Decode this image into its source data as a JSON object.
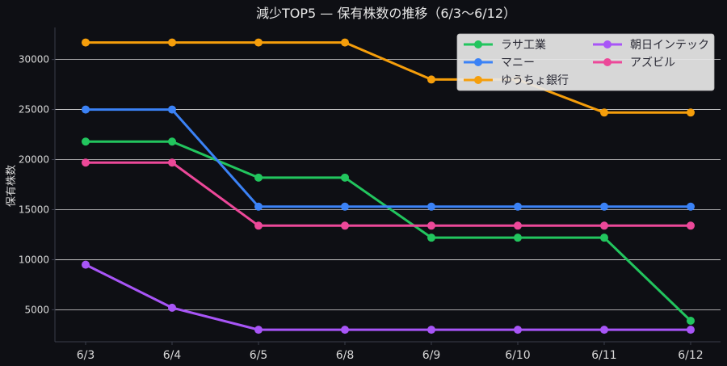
{
  "chart_data": {
    "type": "line",
    "title": "減少TOP5 — 保有株数の推移（6/3〜6/12）",
    "xlabel": "",
    "ylabel": "保有株数",
    "categories": [
      "6/3",
      "6/4",
      "6/5",
      "6/8",
      "6/9",
      "6/10",
      "6/11",
      "6/12"
    ],
    "ylim": [
      1800,
      33200
    ],
    "yticks": [
      5000,
      10000,
      15000,
      20000,
      25000,
      30000
    ],
    "grid": "horizontal",
    "legend": "top-right",
    "series": [
      {
        "name": "ラサ工業",
        "color": "#22c55e",
        "values": [
          21800,
          21800,
          18200,
          18200,
          12200,
          12200,
          12200,
          3900
        ]
      },
      {
        "name": "マニー",
        "color": "#3b82f6",
        "values": [
          25000,
          25000,
          15300,
          15300,
          15300,
          15300,
          15300,
          15300
        ]
      },
      {
        "name": "ゆうちょ銀行",
        "color": "#f59e0b",
        "values": [
          31700,
          31700,
          31700,
          31700,
          28000,
          28000,
          24700,
          24700
        ]
      },
      {
        "name": "朝日インテック",
        "color": "#a855f7",
        "values": [
          9500,
          5200,
          3000,
          3000,
          3000,
          3000,
          3000,
          3000
        ]
      },
      {
        "name": "アズビル",
        "color": "#ec4899",
        "values": [
          19700,
          19700,
          13400,
          13400,
          13400,
          13400,
          13400,
          13400
        ]
      }
    ]
  }
}
